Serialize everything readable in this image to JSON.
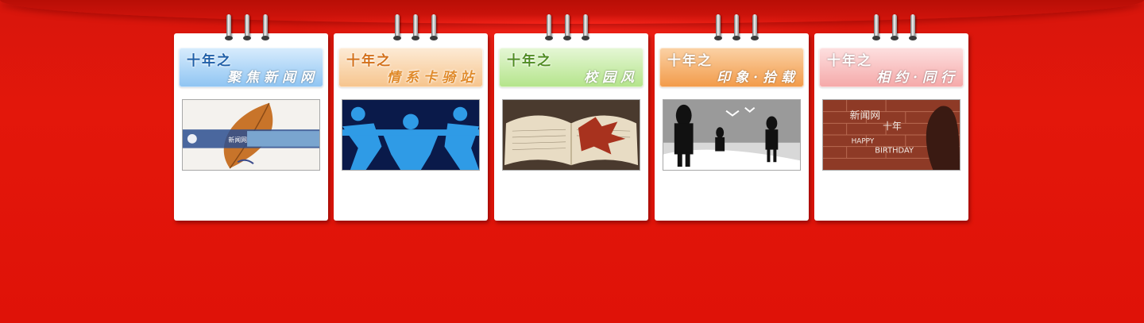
{
  "cards": [
    {
      "title": "十年之",
      "subtitle": "聚焦新闻网",
      "banner_color": "#8ec4f2",
      "banner_color_light": "#d8ecfd",
      "title_color": "#2a6fb8",
      "image_icon": "autumn-leaf-image",
      "logo_text": "新闻网"
    },
    {
      "title": "十年之",
      "subtitle": "情系卡骑站",
      "banner_color": "#f6c48c",
      "banner_color_light": "#fdebd6",
      "title_color": "#d37a1a",
      "image_icon": "paper-people-chain-image"
    },
    {
      "title": "十年之",
      "subtitle": "校园风",
      "banner_color": "#b4e48a",
      "banner_color_light": "#e6f7d6",
      "title_color": "#5a9a2a",
      "image_icon": "open-book-leaf-image"
    },
    {
      "title": "十年之",
      "subtitle": "印象·拾载",
      "banner_color": "#f29a48",
      "banner_color_light": "#fbd2a6",
      "title_color": "#c9661a",
      "image_icon": "silhouette-figures-image"
    },
    {
      "title": "十年之",
      "subtitle": "相约·同行",
      "banner_color": "#f5a8a8",
      "banner_color_light": "#fde0e0",
      "title_color": "#d25a5a",
      "image_icon": "brick-wall-birthday-image",
      "chalk_lines": [
        "新闻网",
        "十年",
        "HAPPY",
        "BIRTHDAY"
      ]
    }
  ],
  "colors": {
    "background": "#e01208",
    "card": "#ffffff"
  }
}
